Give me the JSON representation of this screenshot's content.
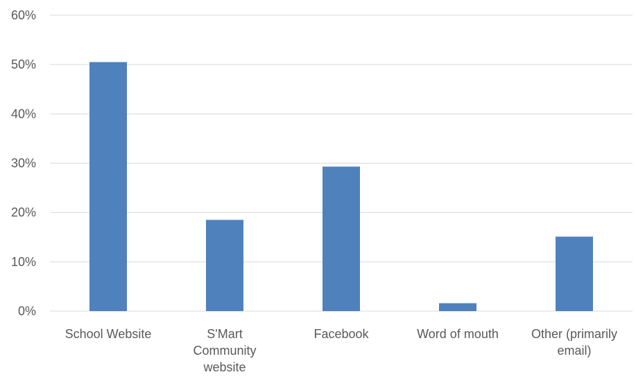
{
  "chart_data": {
    "type": "bar",
    "title": "",
    "xlabel": "",
    "ylabel": "",
    "categories": [
      "School Website",
      "S'Mart Community website",
      "Facebook",
      "Word of mouth",
      "Other (primarily email)"
    ],
    "category_lines": [
      [
        "School Website"
      ],
      [
        "S'Mart",
        "Community",
        "website"
      ],
      [
        "Facebook"
      ],
      [
        "Word of mouth"
      ],
      [
        "Other (primarily",
        "email)"
      ]
    ],
    "values": [
      50.5,
      18.5,
      29.3,
      1.6,
      15.1
    ],
    "value_unit": "%",
    "ylim": [
      0,
      60
    ],
    "y_ticks": [
      "0%",
      "10%",
      "20%",
      "30%",
      "40%",
      "50%",
      "60%"
    ],
    "grid": true,
    "legend": "none",
    "colors": {
      "bar": "#4f81bd",
      "grid": "#d9d9d9",
      "text": "#595959"
    }
  }
}
